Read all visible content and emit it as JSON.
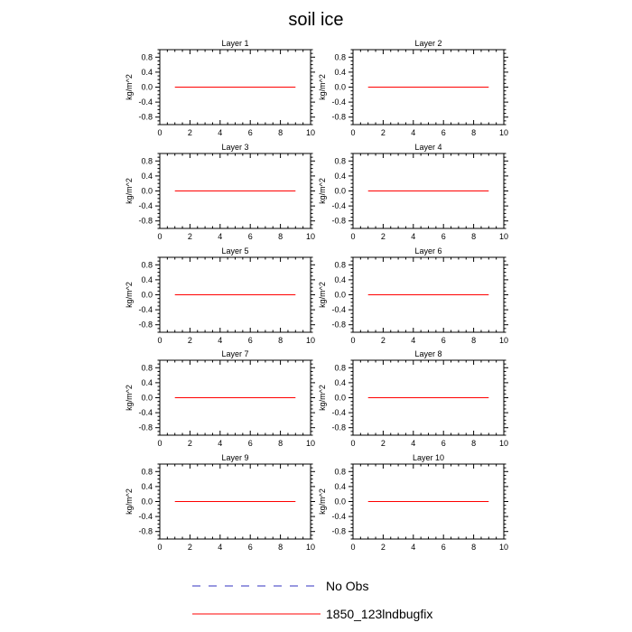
{
  "title": "soil ice",
  "colors": {
    "series": "#ff0000",
    "no_obs": "#3030c0",
    "axis": "#000000"
  },
  "legend": [
    {
      "label": "No Obs",
      "style": "dashed",
      "color": "#3030c0"
    },
    {
      "label": "1850_123lndbugfix",
      "style": "solid",
      "color": "#ff0000"
    }
  ],
  "chart_data": [
    {
      "type": "line",
      "title": "Layer 1",
      "ylabel": "kg/m^2",
      "xlim": [
        0,
        10
      ],
      "ylim": [
        -1,
        1
      ],
      "xticks": [
        0,
        2,
        4,
        6,
        8,
        10
      ],
      "yticks": [
        0.8,
        0.4,
        0.0,
        -0.4,
        -0.8
      ],
      "series": [
        {
          "name": "1850_123lndbugfix",
          "x": [
            1,
            9
          ],
          "y": [
            0,
            0
          ]
        }
      ]
    },
    {
      "type": "line",
      "title": "Layer 2",
      "ylabel": "kg/m^2",
      "xlim": [
        0,
        10
      ],
      "ylim": [
        -1,
        1
      ],
      "xticks": [
        0,
        2,
        4,
        6,
        8,
        10
      ],
      "yticks": [
        0.8,
        0.4,
        0.0,
        -0.4,
        -0.8
      ],
      "series": [
        {
          "name": "1850_123lndbugfix",
          "x": [
            1,
            9
          ],
          "y": [
            0,
            0
          ]
        }
      ]
    },
    {
      "type": "line",
      "title": "Layer 3",
      "ylabel": "kg/m^2",
      "xlim": [
        0,
        10
      ],
      "ylim": [
        -1,
        1
      ],
      "xticks": [
        0,
        2,
        4,
        6,
        8,
        10
      ],
      "yticks": [
        0.8,
        0.4,
        0.0,
        -0.4,
        -0.8
      ],
      "series": [
        {
          "name": "1850_123lndbugfix",
          "x": [
            1,
            9
          ],
          "y": [
            0,
            0
          ]
        }
      ]
    },
    {
      "type": "line",
      "title": "Layer 4",
      "ylabel": "kg/m^2",
      "xlim": [
        0,
        10
      ],
      "ylim": [
        -1,
        1
      ],
      "xticks": [
        0,
        2,
        4,
        6,
        8,
        10
      ],
      "yticks": [
        0.8,
        0.4,
        0.0,
        -0.4,
        -0.8
      ],
      "series": [
        {
          "name": "1850_123lndbugfix",
          "x": [
            1,
            9
          ],
          "y": [
            0,
            0
          ]
        }
      ]
    },
    {
      "type": "line",
      "title": "Layer 5",
      "ylabel": "kg/m^2",
      "xlim": [
        0,
        10
      ],
      "ylim": [
        -1,
        1
      ],
      "xticks": [
        0,
        2,
        4,
        6,
        8,
        10
      ],
      "yticks": [
        0.8,
        0.4,
        0.0,
        -0.4,
        -0.8
      ],
      "series": [
        {
          "name": "1850_123lndbugfix",
          "x": [
            1,
            9
          ],
          "y": [
            0,
            0
          ]
        }
      ]
    },
    {
      "type": "line",
      "title": "Layer 6",
      "ylabel": "kg/m^2",
      "xlim": [
        0,
        10
      ],
      "ylim": [
        -1,
        1
      ],
      "xticks": [
        0,
        2,
        4,
        6,
        8,
        10
      ],
      "yticks": [
        0.8,
        0.4,
        0.0,
        -0.4,
        -0.8
      ],
      "series": [
        {
          "name": "1850_123lndbugfix",
          "x": [
            1,
            9
          ],
          "y": [
            0,
            0
          ]
        }
      ]
    },
    {
      "type": "line",
      "title": "Layer 7",
      "ylabel": "kg/m^2",
      "xlim": [
        0,
        10
      ],
      "ylim": [
        -1,
        1
      ],
      "xticks": [
        0,
        2,
        4,
        6,
        8,
        10
      ],
      "yticks": [
        0.8,
        0.4,
        0.0,
        -0.4,
        -0.8
      ],
      "series": [
        {
          "name": "1850_123lndbugfix",
          "x": [
            1,
            9
          ],
          "y": [
            0,
            0
          ]
        }
      ]
    },
    {
      "type": "line",
      "title": "Layer 8",
      "ylabel": "kg/m^2",
      "xlim": [
        0,
        10
      ],
      "ylim": [
        -1,
        1
      ],
      "xticks": [
        0,
        2,
        4,
        6,
        8,
        10
      ],
      "yticks": [
        0.8,
        0.4,
        0.0,
        -0.4,
        -0.8
      ],
      "series": [
        {
          "name": "1850_123lndbugfix",
          "x": [
            1,
            9
          ],
          "y": [
            0,
            0
          ]
        }
      ]
    },
    {
      "type": "line",
      "title": "Layer 9",
      "ylabel": "kg/m^2",
      "xlim": [
        0,
        10
      ],
      "ylim": [
        -1,
        1
      ],
      "xticks": [
        0,
        2,
        4,
        6,
        8,
        10
      ],
      "yticks": [
        0.8,
        0.4,
        0.0,
        -0.4,
        -0.8
      ],
      "series": [
        {
          "name": "1850_123lndbugfix",
          "x": [
            1,
            9
          ],
          "y": [
            0,
            0
          ]
        }
      ]
    },
    {
      "type": "line",
      "title": "Layer 10",
      "ylabel": "kg/m^2",
      "xlim": [
        0,
        10
      ],
      "ylim": [
        -1,
        1
      ],
      "xticks": [
        0,
        2,
        4,
        6,
        8,
        10
      ],
      "yticks": [
        0.8,
        0.4,
        0.0,
        -0.4,
        -0.8
      ],
      "series": [
        {
          "name": "1850_123lndbugfix",
          "x": [
            1,
            9
          ],
          "y": [
            0,
            0
          ]
        }
      ]
    }
  ]
}
